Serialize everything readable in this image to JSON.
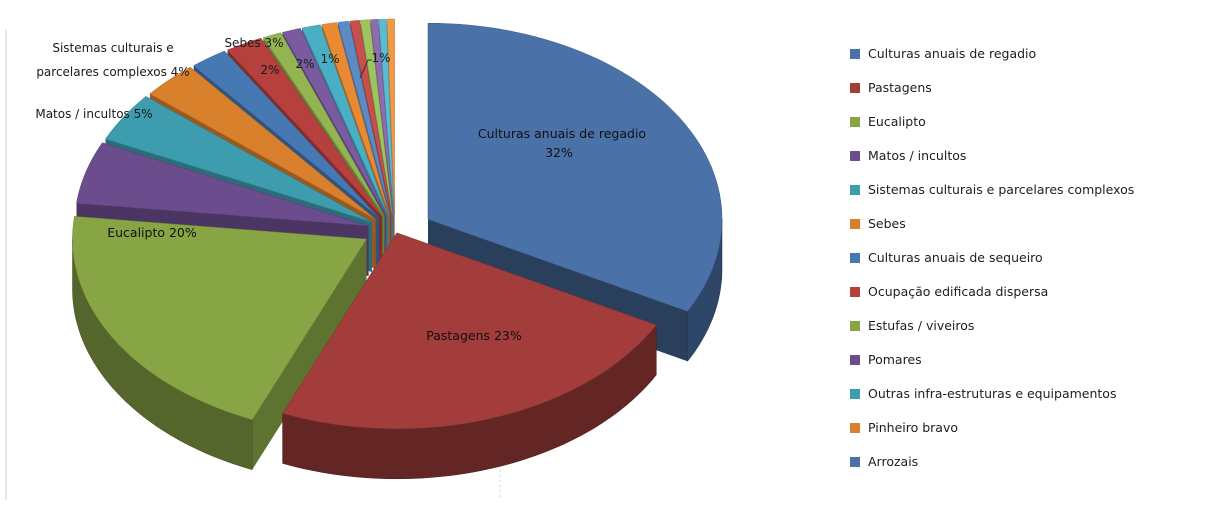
{
  "chart_data": {
    "type": "pie",
    "style": "3d-exploded",
    "legend_position": "right",
    "title": "",
    "slices": [
      {
        "name": "Culturas anuais de regadio",
        "value": 32,
        "label": "Culturas anuais de regadio 32%",
        "color": "#4a72a8"
      },
      {
        "name": "Pastagens",
        "value": 23,
        "label": "Pastagens 23%",
        "color": "#a23d3b"
      },
      {
        "name": "Eucalipto",
        "value": 20,
        "label": "Eucalipto 20%",
        "color": "#88a545"
      },
      {
        "name": "Matos / incultos",
        "value": 5,
        "label": "Matos / incultos 5%",
        "color": "#6b4d8e"
      },
      {
        "name": "Sistemas culturais e parcelares complexos",
        "value": 4,
        "label": "Sistemas culturais e parcelares complexos 4%",
        "color": "#3d9cad"
      },
      {
        "name": "Sebes",
        "value": 3,
        "label": "Sebes 3%",
        "color": "#d9802d"
      },
      {
        "name": "Culturas anuais de sequeiro",
        "value": 2,
        "label": "2%",
        "color": "#4678b4"
      },
      {
        "name": "Ocupação edificada dispersa",
        "value": 2,
        "label": "2%",
        "color": "#b6403d"
      },
      {
        "name": "Estufas / viveiros",
        "value": 1,
        "label": "1%",
        "color": "#93b451"
      },
      {
        "name": "Pomares",
        "value": 1,
        "label": "1%",
        "color": "#7a5ba0"
      },
      {
        "name": "Outras infra-estruturas e equipamentos",
        "value": 1,
        "label": "",
        "color": "#4aafc4"
      },
      {
        "name": "Pinheiro bravo",
        "value": 0.8,
        "label": "",
        "color": "#e88a33"
      },
      {
        "name": "Arrozais",
        "value": 0.6,
        "label": "",
        "color": "#5c8ac2"
      },
      {
        "name": "",
        "value": 0.5,
        "label": "",
        "color": "#c8504c"
      },
      {
        "name": "",
        "value": 0.5,
        "label": "",
        "color": "#9ec460"
      },
      {
        "name": "",
        "value": 0.4,
        "label": "",
        "color": "#8c6eb0"
      },
      {
        "name": "",
        "value": 0.4,
        "label": "",
        "color": "#5abcd0"
      },
      {
        "name": "",
        "value": 0.4,
        "label": "",
        "color": "#f09a48"
      }
    ],
    "extra_labels": [
      "Sistemas culturais e",
      "parcelares complexos 4%",
      "Sebes 3%",
      "2%",
      "2%",
      "1%",
      "1%"
    ],
    "legend": [
      {
        "label": "Culturas anuais de regadio",
        "color": "#4a72a8"
      },
      {
        "label": "Pastagens",
        "color": "#a23d3b"
      },
      {
        "label": "Eucalipto",
        "color": "#88a545"
      },
      {
        "label": "Matos / incultos",
        "color": "#6b4d8e"
      },
      {
        "label": "Sistemas culturais e parcelares complexos",
        "color": "#3d9cad"
      },
      {
        "label": "Sebes",
        "color": "#d9802d"
      },
      {
        "label": "Culturas anuais de sequeiro",
        "color": "#4678b4"
      },
      {
        "label": "Ocupação edificada dispersa",
        "color": "#b6403d"
      },
      {
        "label": "Estufas / viveiros",
        "color": "#88a545"
      },
      {
        "label": "Pomares",
        "color": "#6b4d8e"
      },
      {
        "label": "Outras infra-estruturas e equipamentos",
        "color": "#3d9cad"
      },
      {
        "label": "Pinheiro bravo",
        "color": "#d9802d"
      },
      {
        "label": "Arrozais",
        "color": "#4a72a8"
      }
    ]
  }
}
